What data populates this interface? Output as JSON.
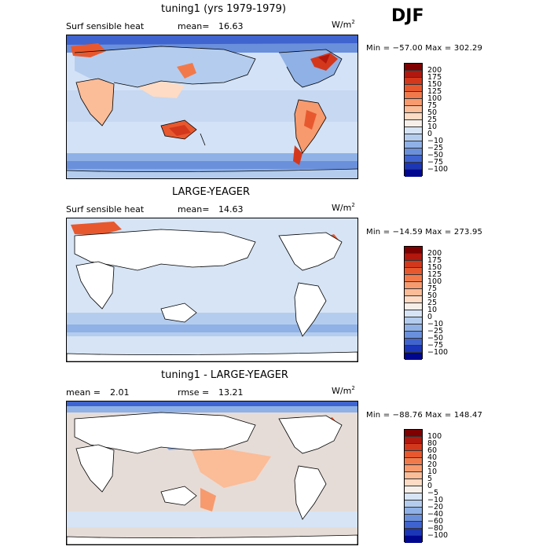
{
  "season": "DJF",
  "panels": [
    {
      "title": "tuning1 (yrs 1979-1979)",
      "left_label": "Surf sensible heat",
      "stat_label": "mean=",
      "stat_value": "16.63",
      "unit_base": "W/m",
      "unit_exp": "2",
      "minmax": "Min = −57.00 Max = 302.29",
      "colorbar": {
        "labels": [
          "200",
          "175",
          "150",
          "125",
          "100",
          "75",
          "50",
          "25",
          "10",
          "0",
          "−10",
          "−25",
          "−50",
          "−75",
          "−100"
        ],
        "colors": [
          "#7f0000",
          "#b2180e",
          "#d4381c",
          "#e8582e",
          "#f27a4a",
          "#f79a6e",
          "#fbbc98",
          "#fddbc4",
          "#f6efe9",
          "#d6e4f5",
          "#b4cdee",
          "#8fb1e6",
          "#6a90dc",
          "#3f64cf",
          "#1c36b8",
          "#00078f"
        ]
      },
      "ocean_color": "#d0e0f6",
      "land": true
    },
    {
      "title": "LARGE-YEAGER",
      "left_label": "Surf sensible heat",
      "stat_label": "mean=",
      "stat_value": "14.63",
      "unit_base": "W/m",
      "unit_exp": "2",
      "minmax": "Min = −14.59 Max = 273.95",
      "colorbar": {
        "labels": [
          "200",
          "175",
          "150",
          "125",
          "100",
          "75",
          "50",
          "25",
          "10",
          "0",
          "−10",
          "−25",
          "−50",
          "−75",
          "−100"
        ],
        "colors": [
          "#7f0000",
          "#b2180e",
          "#d4381c",
          "#e8582e",
          "#f27a4a",
          "#f79a6e",
          "#fbbc98",
          "#fddbc4",
          "#f6efe9",
          "#d6e4f5",
          "#b4cdee",
          "#8fb1e6",
          "#6a90dc",
          "#3f64cf",
          "#1c36b8",
          "#00078f"
        ]
      },
      "ocean_color": "#d0e0f6",
      "land": false
    },
    {
      "title": "tuning1 - LARGE-YEAGER",
      "left_label": "mean =",
      "left_value": "2.01",
      "stat_label": "rmse =",
      "stat_value": "13.21",
      "unit_base": "W/m",
      "unit_exp": "2",
      "minmax": "Min = −88.76 Max = 148.47",
      "colorbar": {
        "labels": [
          "100",
          "80",
          "60",
          "40",
          "20",
          "10",
          "5",
          "0",
          "−5",
          "−10",
          "−20",
          "−40",
          "−60",
          "−80",
          "−100"
        ],
        "colors": [
          "#7f0000",
          "#b2180e",
          "#d4381c",
          "#e8582e",
          "#f27a4a",
          "#f79a6e",
          "#fbbc98",
          "#fddbc4",
          "#f6efe9",
          "#d6e4f5",
          "#b4cdee",
          "#8fb1e6",
          "#6a90dc",
          "#3f64cf",
          "#1c36b8",
          "#00078f"
        ]
      },
      "ocean_color": "#e4d9d4",
      "land": false
    }
  ]
}
